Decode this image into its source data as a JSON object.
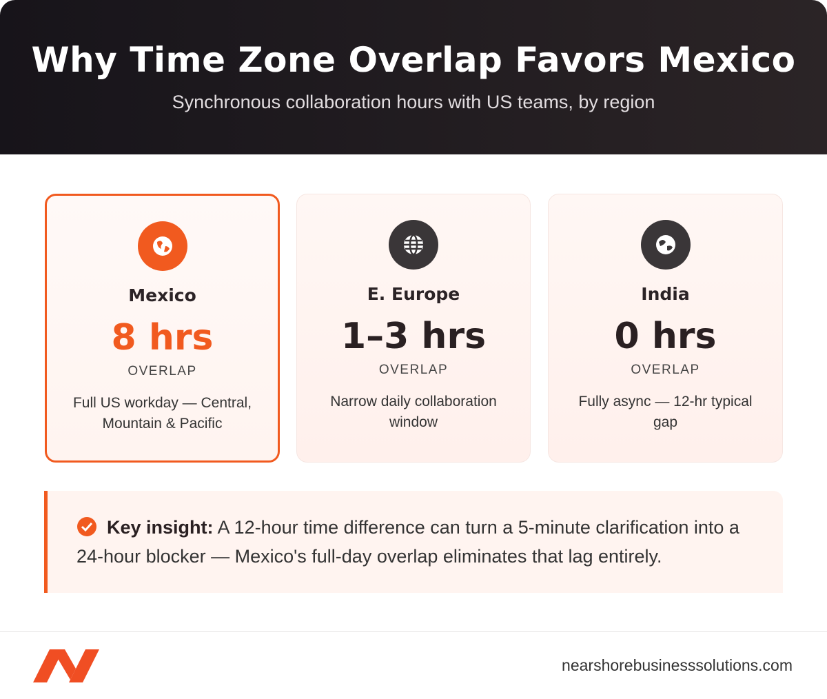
{
  "header": {
    "title": "Why Time Zone Overlap Favors Mexico",
    "subtitle": "Synchronous collaboration hours with US teams, by region"
  },
  "cards": [
    {
      "name": "Mexico",
      "value": "8 hrs",
      "label": "OVERLAP",
      "description": "Full US workday — Central, Mountain & Pacific"
    },
    {
      "name": "E. Europe",
      "value": "1–3 hrs",
      "label": "OVERLAP",
      "description": "Narrow daily collaboration window"
    },
    {
      "name": "India",
      "value": "0 hrs",
      "label": "OVERLAP",
      "description": "Fully async — 12-hr typical gap"
    }
  ],
  "insight": {
    "lead": "Key insight:",
    "text": "A 12-hour time difference can turn a 5-minute clarification into a 24-hour blocker — Mexico's full-day overlap eliminates that lag entirely."
  },
  "footer": {
    "url": "nearshorebusinesssolutions.com"
  }
}
